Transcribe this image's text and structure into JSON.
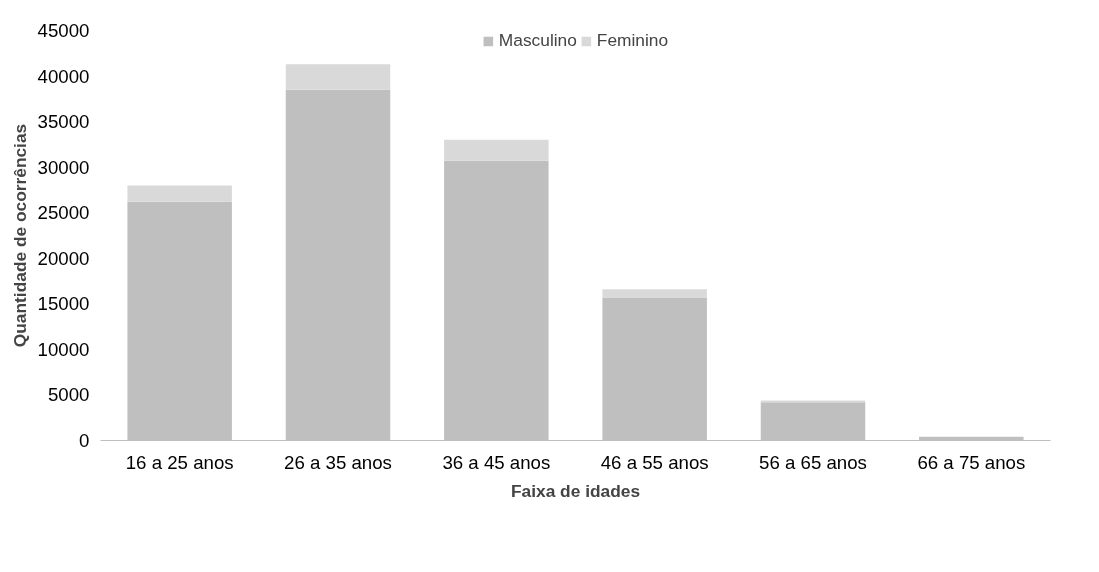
{
  "chart_data": {
    "type": "bar",
    "stacked": true,
    "xlabel": "Faixa de idades",
    "ylabel": "Quantidade de ocorrências",
    "categories": [
      "16 a 25 anos",
      "26 a 35 anos",
      "36 a 45 anos",
      "46 a 55 anos",
      "56 a 65 anos",
      "66 a 75 anos"
    ],
    "series": [
      {
        "name": "Masculino",
        "color": "#bfbfbf",
        "values": [
          26200,
          38500,
          30700,
          15700,
          4200,
          400
        ]
      },
      {
        "name": "Feminino",
        "color": "#d9d9d9",
        "values": [
          1800,
          2800,
          2300,
          900,
          200,
          null
        ]
      }
    ],
    "ylim": [
      0,
      45000
    ],
    "yticks": [
      0,
      5000,
      10000,
      15000,
      20000,
      25000,
      30000,
      35000,
      40000,
      45000
    ],
    "grid": false,
    "legend": "top"
  }
}
